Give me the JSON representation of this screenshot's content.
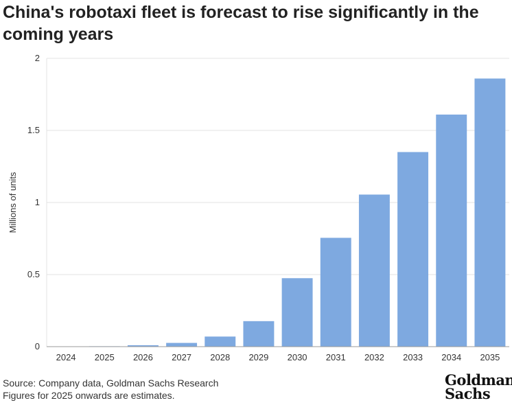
{
  "chart_data": {
    "type": "bar",
    "title": "China's robotaxi fleet is forecast to rise significantly in the coming years",
    "xlabel": "",
    "ylabel": "Millions of units",
    "categories": [
      "2024",
      "2025",
      "2026",
      "2027",
      "2028",
      "2029",
      "2030",
      "2031",
      "2032",
      "2033",
      "2034",
      "2035"
    ],
    "values": [
      0.0,
      0.003,
      0.01,
      0.026,
      0.07,
      0.177,
      0.475,
      0.755,
      1.055,
      1.35,
      1.61,
      1.86
    ],
    "ylim": [
      0,
      2
    ],
    "yticks": [
      0,
      0.5,
      1,
      1.5,
      2
    ],
    "ytick_labels": [
      "0",
      "0.5",
      "1",
      "1.5",
      "2"
    ],
    "grid": true,
    "bar_color": "#7ea9e0",
    "grid_color": "#e3e3e3",
    "axis_color": "#9a9a9a"
  },
  "footer": {
    "source": "Source: Company data, Goldman Sachs Research",
    "note": "Figures for 2025 onwards are estimates."
  },
  "logo": {
    "line1": "Goldman",
    "line2": "Sachs"
  }
}
